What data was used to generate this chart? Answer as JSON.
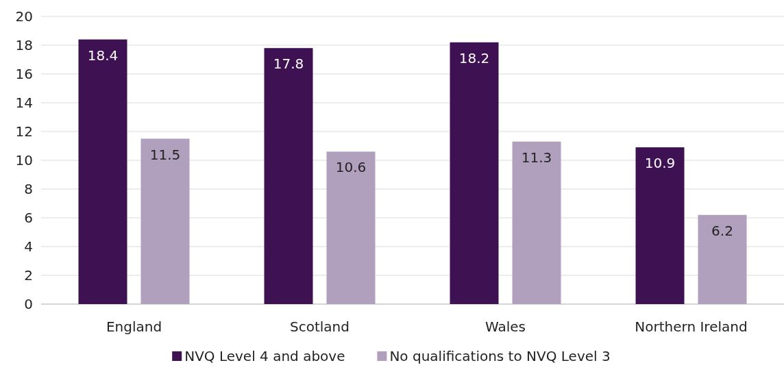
{
  "chart_data": {
    "type": "bar",
    "categories": [
      "England",
      "Scotland",
      "Wales",
      "Northern Ireland"
    ],
    "series": [
      {
        "name": "NVQ Level 4 and above",
        "color": "#3d1152",
        "values": [
          18.4,
          17.8,
          18.2,
          10.9
        ]
      },
      {
        "name": "No qualifications to NVQ Level 3",
        "color": "#b0a0bd",
        "values": [
          11.5,
          10.6,
          11.3,
          6.2
        ]
      }
    ],
    "ylim": [
      0,
      20
    ],
    "yticks": [
      0,
      2,
      4,
      6,
      8,
      10,
      12,
      14,
      16,
      18,
      20
    ],
    "grid": "y",
    "legend": "bottom",
    "data_labels": true
  }
}
